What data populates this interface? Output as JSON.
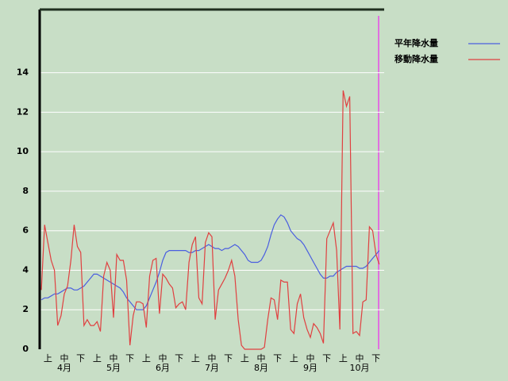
{
  "chart_data": {
    "type": "line",
    "legend_position": "upper right",
    "grid": true,
    "ylim": [
      0,
      17.2
    ],
    "yticks": [
      0,
      2,
      4,
      6,
      8,
      10,
      12,
      14
    ],
    "categories": [
      null,
      null,
      "上",
      null,
      null,
      null,
      null,
      "中",
      null,
      null,
      null,
      null,
      "下",
      null,
      null,
      null,
      null,
      "上",
      null,
      null,
      null,
      null,
      "中",
      null,
      null,
      null,
      null,
      "下",
      null,
      null,
      null,
      null,
      "上",
      null,
      null,
      null,
      null,
      "中",
      null,
      null,
      null,
      null,
      "下",
      null,
      null,
      null,
      null,
      "上",
      null,
      null,
      null,
      null,
      "中",
      null,
      null,
      null,
      null,
      "下",
      null,
      null,
      null,
      null,
      "上",
      null,
      null,
      null,
      null,
      "中",
      null,
      null,
      null,
      null,
      "下",
      null,
      null,
      null,
      null,
      "上",
      null,
      null,
      null,
      null,
      "中",
      null,
      null,
      null,
      null,
      "下",
      null,
      null,
      null,
      null,
      "上",
      null,
      null,
      null,
      null,
      "中",
      null,
      null,
      null,
      null,
      "下",
      null,
      null
    ],
    "months": [
      "4月",
      "5月",
      "6月",
      "7月",
      "8月",
      "9月",
      "10月"
    ],
    "series": [
      {
        "name": "平年降水量",
        "color": "#4a5ee0",
        "values": [
          2.5,
          2.6,
          2.6,
          2.7,
          2.8,
          2.8,
          2.9,
          3.0,
          3.1,
          3.1,
          3.0,
          3.0,
          3.1,
          3.2,
          3.4,
          3.6,
          3.8,
          3.8,
          3.7,
          3.6,
          3.5,
          3.4,
          3.3,
          3.2,
          3.1,
          2.9,
          2.6,
          2.4,
          2.2,
          2.0,
          2.0,
          2.0,
          2.2,
          2.6,
          3.0,
          3.4,
          3.9,
          4.5,
          4.9,
          5.0,
          5.0,
          5.0,
          5.0,
          5.0,
          5.0,
          4.9,
          4.9,
          5.0,
          5.0,
          5.1,
          5.2,
          5.3,
          5.2,
          5.1,
          5.1,
          5.0,
          5.1,
          5.1,
          5.2,
          5.3,
          5.2,
          5.0,
          4.8,
          4.5,
          4.4,
          4.4,
          4.4,
          4.5,
          4.8,
          5.2,
          5.8,
          6.3,
          6.6,
          6.8,
          6.7,
          6.4,
          6.0,
          5.8,
          5.6,
          5.5,
          5.3,
          5.0,
          4.7,
          4.4,
          4.1,
          3.8,
          3.6,
          3.6,
          3.7,
          3.7,
          3.9,
          4.0,
          4.1,
          4.2,
          4.2,
          4.2,
          4.2,
          4.1,
          4.1,
          4.2,
          4.4,
          4.6,
          4.8,
          5.0,
          null
        ]
      },
      {
        "name": "移動降水量",
        "color": "#e04040",
        "values": [
          3.0,
          6.3,
          5.4,
          4.5,
          4.0,
          1.2,
          1.7,
          2.8,
          3.2,
          4.5,
          6.3,
          5.2,
          4.9,
          1.2,
          1.5,
          1.2,
          1.2,
          1.4,
          0.9,
          3.7,
          4.4,
          4.0,
          1.6,
          4.8,
          4.5,
          4.5,
          3.5,
          0.2,
          1.7,
          2.4,
          2.4,
          2.3,
          1.1,
          3.7,
          4.5,
          4.6,
          1.8,
          3.8,
          3.6,
          3.3,
          3.1,
          2.1,
          2.3,
          2.4,
          2.0,
          4.4,
          5.3,
          5.7,
          2.6,
          2.3,
          5.4,
          5.9,
          5.7,
          1.5,
          3.0,
          3.3,
          3.6,
          4.0,
          4.5,
          3.7,
          1.5,
          0.2,
          0,
          0,
          0,
          0,
          0,
          0,
          0.1,
          1.5,
          2.6,
          2.5,
          1.5,
          3.5,
          3.4,
          3.4,
          1.0,
          0.8,
          2.3,
          2.8,
          1.6,
          1.0,
          0.6,
          1.3,
          1.1,
          0.8,
          0.3,
          5.6,
          6.0,
          6.4,
          5.0,
          1.0,
          13.1,
          12.3,
          12.8,
          0.8,
          0.9,
          0.7,
          2.4,
          2.5,
          6.2,
          6.0,
          4.8,
          4.3,
          null
        ]
      }
    ]
  }
}
